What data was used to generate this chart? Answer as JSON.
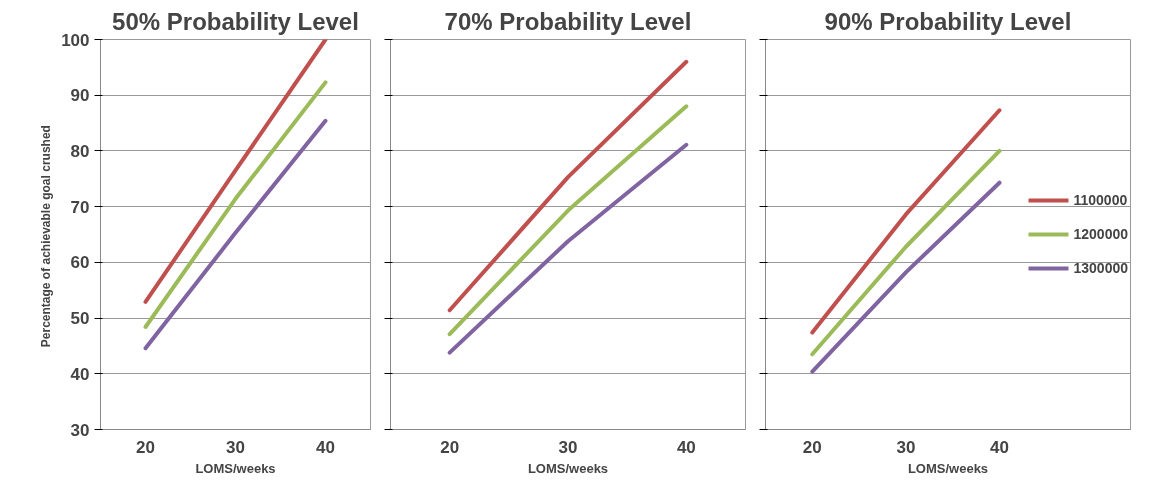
{
  "chart_data": [
    {
      "type": "line",
      "title": "50% Probability Level",
      "xlabel": "LOMS/weeks",
      "ylabel": "Percentage of  achievable goal crushed",
      "categories": [
        "20",
        "30",
        "40"
      ],
      "ylim": [
        30,
        100
      ],
      "yticks": [
        30,
        40,
        50,
        60,
        70,
        80,
        90,
        100
      ],
      "grid": "y",
      "legend": false,
      "marker": "none",
      "line_style": "solid",
      "series": [
        {
          "color": "#c0504d",
          "values": [
            52.9,
            76.5,
            100
          ]
        },
        {
          "color": "#9bbb59",
          "values": [
            48.4,
            71.4,
            92.3
          ]
        },
        {
          "color": "#8064a2",
          "values": [
            44.6,
            65.3,
            85.4
          ]
        }
      ]
    },
    {
      "type": "line",
      "title": "70% Probability Level",
      "xlabel": "LOMS/weeks",
      "categories": [
        "20",
        "30",
        "40"
      ],
      "ylim": [
        30,
        100
      ],
      "yticks": [
        30,
        40,
        50,
        60,
        70,
        80,
        90,
        100
      ],
      "tick_labels": "x",
      "grid": "y",
      "legend": false,
      "marker": "none",
      "line_style": "solid",
      "series": [
        {
          "color": "#c0504d",
          "values": [
            51.4,
            75.3,
            96.0
          ]
        },
        {
          "color": "#9bbb59",
          "values": [
            47.1,
            69.3,
            88.0
          ]
        },
        {
          "color": "#8064a2",
          "values": [
            43.8,
            63.8,
            81.1
          ]
        }
      ]
    },
    {
      "type": "line",
      "title": "90% Probability Level",
      "xlabel": "LOMS/weeks",
      "categories": [
        "20",
        "30",
        "40"
      ],
      "ylim": [
        30,
        100
      ],
      "yticks": [
        30,
        40,
        50,
        60,
        70,
        80,
        90,
        100
      ],
      "tick_labels": "x",
      "grid": "y",
      "legend": "right",
      "marker": "none",
      "line_style": "solid",
      "series": [
        {
          "name": "1100000",
          "color": "#c0504d",
          "values": [
            47.4,
            68.6,
            87.3
          ]
        },
        {
          "name": "1200000",
          "color": "#9bbb59",
          "values": [
            43.5,
            62.8,
            80.0
          ]
        },
        {
          "name": "1300000",
          "color": "#8064a2",
          "values": [
            40.4,
            58.2,
            74.3
          ]
        }
      ]
    }
  ]
}
